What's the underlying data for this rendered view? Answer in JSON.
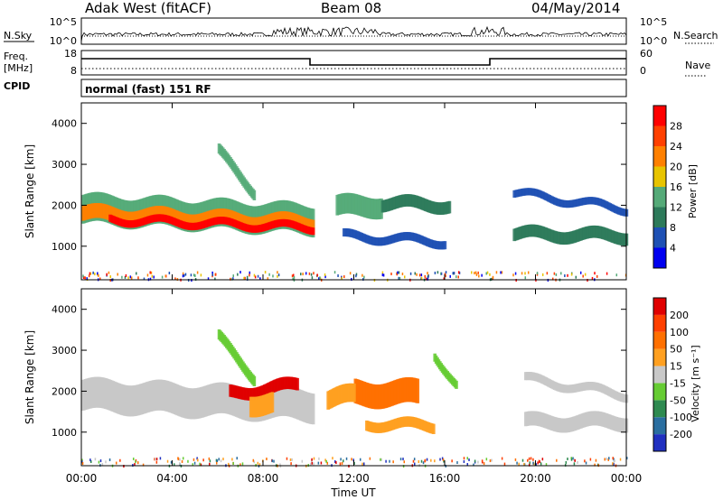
{
  "header": {
    "station": "Adak West (fitACF)",
    "beam": "Beam 08",
    "date": "04/May/2014"
  },
  "nsky_panel": {
    "left_label": "N.Sky",
    "left_ticks": [
      "10^5",
      "10^0"
    ],
    "right_ticks": [
      "10^5",
      "10^0"
    ],
    "right_label": "N.Search",
    "right_label_style": "dotted"
  },
  "freq_panel": {
    "left_label_1": "Freq.",
    "left_label_2": "[MHz]",
    "left_ticks": [
      "18",
      "8"
    ],
    "right_ticks": [
      "60",
      "0"
    ],
    "right_label": "Nave",
    "right_label_style": "dotted"
  },
  "cpid": {
    "label": "CPID",
    "text": "normal (fast) 151 RF"
  },
  "chart_data": [
    {
      "type": "heatmap",
      "name": "power",
      "ylabel": "Slant Range [km]",
      "yticks": [
        "4000",
        "3000",
        "2000",
        "1000"
      ],
      "ylim": [
        180,
        4500
      ],
      "xticks": [
        "00:00",
        "04:00",
        "08:00",
        "12:00",
        "16:00",
        "20:00",
        "00:00"
      ],
      "colorbar": {
        "label": "Power [dB]",
        "ticks": [
          "28",
          "24",
          "20",
          "16",
          "12",
          "8",
          "4"
        ],
        "colors": [
          "#0000f0",
          "#1e50b4",
          "#2d7a5a",
          "#55aa78",
          "#e8c400",
          "#ff8000",
          "#ff4000",
          "#ff0000"
        ]
      }
    },
    {
      "type": "heatmap",
      "name": "velocity",
      "ylabel": "Slant Range [km]",
      "yticks": [
        "4000",
        "3000",
        "2000",
        "1000"
      ],
      "ylim": [
        180,
        4500
      ],
      "xticks": [
        "00:00",
        "04:00",
        "08:00",
        "12:00",
        "16:00",
        "20:00",
        "00:00"
      ],
      "xlabel": "Time UT",
      "colorbar": {
        "label": "Velocity [m s⁻¹]",
        "ticks": [
          "200",
          "100",
          "50",
          "15",
          "-15",
          "-50",
          "-100",
          "-200"
        ],
        "colors": [
          "#2030c0",
          "#2a6ea0",
          "#2e8a50",
          "#66cc33",
          "#c8c8c8",
          "#ffa020",
          "#ff7000",
          "#ff4000",
          "#e00000"
        ]
      }
    }
  ]
}
